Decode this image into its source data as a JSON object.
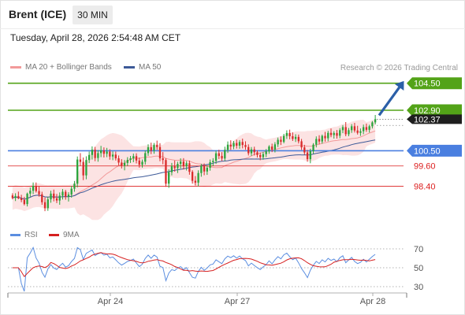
{
  "header": {
    "instrument": "Brent (ICE)",
    "interval": "30 MIN",
    "timestamp": "Tuesday, April 28, 2026 2:54:48 AM CET"
  },
  "legend": {
    "ma20_bb": "MA 20 + Bollinger Bands",
    "ma50": "MA 50",
    "credit": "Research © 2026 Trading Central",
    "rsi": "RSI",
    "rsi_ma": "9MA"
  },
  "colors": {
    "resistance": "#53a318",
    "support": "#4a7fe0",
    "minor_level": "#dc1e1e",
    "candle_up": "#2aa43c",
    "candle_down": "#d92b2b",
    "bollinger_band": "#fbdada",
    "ma20": "#f29a9a",
    "ma50": "#3d5a98",
    "rsi": "#5b8ee0",
    "rsi_ma": "#d62020",
    "arrow": "#2b5fa8",
    "last_price": "#1e1e1e"
  },
  "chart_data": [
    {
      "type": "candlestick",
      "title": "Brent (ICE)",
      "interval": "30 MIN",
      "y_ticks": [
        98.4,
        99.6,
        100.5,
        102.9,
        104.5
      ],
      "ylim": [
        96.6,
        105.0
      ],
      "x_ticks": [
        "Apr 24",
        "Apr 27",
        "Apr 28"
      ],
      "levels": [
        {
          "value": 104.5,
          "label": "104.50",
          "kind": "resistance",
          "style": "solid",
          "badge": true
        },
        {
          "value": 102.9,
          "label": "102.90",
          "kind": "resistance",
          "style": "solid",
          "badge": true
        },
        {
          "value": 100.5,
          "label": "100.50",
          "kind": "support",
          "style": "solid",
          "badge": true
        },
        {
          "value": 99.6,
          "label": "99.60",
          "kind": "minor",
          "style": "thin",
          "badge": false
        },
        {
          "value": 98.4,
          "label": "98.40",
          "kind": "minor",
          "style": "thin",
          "badge": false
        }
      ],
      "last_price": {
        "value": 102.37,
        "label": "102.37"
      },
      "projection_arrow": {
        "from": 102.6,
        "to": 104.5,
        "direction": "up"
      },
      "series": [
        {
          "name": "MA 20 + Bollinger Bands",
          "type": "line"
        },
        {
          "name": "MA 50",
          "type": "line"
        }
      ],
      "ohlc": [
        [
          97.85,
          97.98,
          97.62,
          97.7
        ],
        [
          97.7,
          97.98,
          97.52,
          97.82
        ],
        [
          97.82,
          98.08,
          97.63,
          97.68
        ],
        [
          97.68,
          97.89,
          97.45,
          97.58
        ],
        [
          97.58,
          97.77,
          97.26,
          97.34
        ],
        [
          97.34,
          98.02,
          97.2,
          97.96
        ],
        [
          97.96,
          98.32,
          97.78,
          98.13
        ],
        [
          98.13,
          98.62,
          97.93,
          98.42
        ],
        [
          98.42,
          98.62,
          98.02,
          98.11
        ],
        [
          98.11,
          98.37,
          97.78,
          97.92
        ],
        [
          97.92,
          98.07,
          97.3,
          97.45
        ],
        [
          97.45,
          97.73,
          96.92,
          97.1
        ],
        [
          97.1,
          97.77,
          96.94,
          97.62
        ],
        [
          97.62,
          98.13,
          97.42,
          97.96
        ],
        [
          97.96,
          98.2,
          97.5,
          97.68
        ],
        [
          97.68,
          97.94,
          97.4,
          97.55
        ],
        [
          97.55,
          98.03,
          97.3,
          97.84
        ],
        [
          97.84,
          98.23,
          97.61,
          98.07
        ],
        [
          98.07,
          98.18,
          97.6,
          97.78
        ],
        [
          97.78,
          98.04,
          97.49,
          97.9
        ],
        [
          97.9,
          98.42,
          97.72,
          98.25
        ],
        [
          98.25,
          98.71,
          98.07,
          98.55
        ],
        [
          98.55,
          100.16,
          98.33,
          99.98
        ],
        [
          99.98,
          100.36,
          99.6,
          99.84
        ],
        [
          99.84,
          100.1,
          98.76,
          99.04
        ],
        [
          99.04,
          100.17,
          98.81,
          99.95
        ],
        [
          99.95,
          100.45,
          99.77,
          100.25
        ],
        [
          100.25,
          100.76,
          99.98,
          100.56
        ],
        [
          100.56,
          100.73,
          99.88,
          100.07
        ],
        [
          100.07,
          100.54,
          99.85,
          100.36
        ],
        [
          100.36,
          100.79,
          100.12,
          100.52
        ],
        [
          100.52,
          100.7,
          100.1,
          100.32
        ],
        [
          100.32,
          100.67,
          100.12,
          100.45
        ],
        [
          100.45,
          100.59,
          99.97,
          100.16
        ],
        [
          100.16,
          100.46,
          99.94,
          100.27
        ],
        [
          100.27,
          100.45,
          99.92,
          100.05
        ],
        [
          100.05,
          100.22,
          99.64,
          99.8
        ],
        [
          99.8,
          100.0,
          99.45,
          99.62
        ],
        [
          99.62,
          99.95,
          99.34,
          99.78
        ],
        [
          99.78,
          100.12,
          99.6,
          99.96
        ],
        [
          99.96,
          100.19,
          99.78,
          100.05
        ],
        [
          100.05,
          100.33,
          99.82,
          100.18
        ],
        [
          100.18,
          100.35,
          99.75,
          99.92
        ],
        [
          99.92,
          100.1,
          99.5,
          99.67
        ],
        [
          99.67,
          99.98,
          99.5,
          99.85
        ],
        [
          99.85,
          100.52,
          99.68,
          100.36
        ],
        [
          100.36,
          100.88,
          100.2,
          100.71
        ],
        [
          100.71,
          100.98,
          100.3,
          100.5
        ],
        [
          100.5,
          100.96,
          100.32,
          100.84
        ],
        [
          100.84,
          101.1,
          100.55,
          100.72
        ],
        [
          100.72,
          100.95,
          99.88,
          100.05
        ],
        [
          100.05,
          100.42,
          99.7,
          99.95
        ],
        [
          99.95,
          100.05,
          98.36,
          98.55
        ],
        [
          98.55,
          99.4,
          98.3,
          99.23
        ],
        [
          99.23,
          99.78,
          99.04,
          99.58
        ],
        [
          99.58,
          99.92,
          99.26,
          99.47
        ],
        [
          99.47,
          99.85,
          99.18,
          99.72
        ],
        [
          99.72,
          100.05,
          99.45,
          99.86
        ],
        [
          99.86,
          100.06,
          99.39,
          99.58
        ],
        [
          99.58,
          99.89,
          99.33,
          99.76
        ],
        [
          99.76,
          99.92,
          99.08,
          99.25
        ],
        [
          99.25,
          99.35,
          98.55,
          98.72
        ],
        [
          98.72,
          99.0,
          98.44,
          98.61
        ],
        [
          98.61,
          99.34,
          98.39,
          99.18
        ],
        [
          99.18,
          99.72,
          98.96,
          99.59
        ],
        [
          99.59,
          99.75,
          99.05,
          99.27
        ],
        [
          99.27,
          99.64,
          99.07,
          99.49
        ],
        [
          99.49,
          99.98,
          99.32,
          99.82
        ],
        [
          99.82,
          100.06,
          99.6,
          99.9
        ],
        [
          99.9,
          100.51,
          99.72,
          100.35
        ],
        [
          100.35,
          100.56,
          100.01,
          100.19
        ],
        [
          100.19,
          100.42,
          99.9,
          100.04
        ],
        [
          100.04,
          100.74,
          99.9,
          100.55
        ],
        [
          100.55,
          101.05,
          100.37,
          100.86
        ],
        [
          100.86,
          101.12,
          100.55,
          100.75
        ],
        [
          100.75,
          101.08,
          100.59,
          100.96
        ],
        [
          100.96,
          101.16,
          100.63,
          100.8
        ],
        [
          100.8,
          101.13,
          100.62,
          101.02
        ],
        [
          101.02,
          101.22,
          100.64,
          100.84
        ],
        [
          100.84,
          101.06,
          100.56,
          100.72
        ],
        [
          100.72,
          100.88,
          100.22,
          100.35
        ],
        [
          100.35,
          100.72,
          100.2,
          100.58
        ],
        [
          100.58,
          100.74,
          100.22,
          100.41
        ],
        [
          100.41,
          100.52,
          100.1,
          100.25
        ],
        [
          100.25,
          100.39,
          99.94,
          100.12
        ],
        [
          100.12,
          100.43,
          99.97,
          100.3
        ],
        [
          100.3,
          100.6,
          100.12,
          100.46
        ],
        [
          100.46,
          100.83,
          100.32,
          100.75
        ],
        [
          100.75,
          100.92,
          100.42,
          100.57
        ],
        [
          100.57,
          101.01,
          100.4,
          100.88
        ],
        [
          100.88,
          101.28,
          100.72,
          101.15
        ],
        [
          101.15,
          101.35,
          100.84,
          101.03
        ],
        [
          101.03,
          101.5,
          100.94,
          101.38
        ],
        [
          101.38,
          101.71,
          101.2,
          101.55
        ],
        [
          101.55,
          101.75,
          101.18,
          101.36
        ],
        [
          101.36,
          101.59,
          101.08,
          101.2
        ],
        [
          101.2,
          101.48,
          101.02,
          101.32
        ],
        [
          101.32,
          101.46,
          100.93,
          101.06
        ],
        [
          101.06,
          101.2,
          100.55,
          100.7
        ],
        [
          100.7,
          100.85,
          100.26,
          100.4
        ],
        [
          100.4,
          100.55,
          99.85,
          100.0
        ],
        [
          100.0,
          100.62,
          99.76,
          100.48
        ],
        [
          100.48,
          100.95,
          100.32,
          100.86
        ],
        [
          100.86,
          101.35,
          100.7,
          101.2
        ],
        [
          101.2,
          101.42,
          100.88,
          101.05
        ],
        [
          101.05,
          101.46,
          100.92,
          101.38
        ],
        [
          101.38,
          101.62,
          101.04,
          101.24
        ],
        [
          101.24,
          101.68,
          101.06,
          101.56
        ],
        [
          101.56,
          101.82,
          101.3,
          101.43
        ],
        [
          101.43,
          101.66,
          101.22,
          101.55
        ],
        [
          101.55,
          101.73,
          101.22,
          101.39
        ],
        [
          101.39,
          101.84,
          101.24,
          101.72
        ],
        [
          101.72,
          102.02,
          101.54,
          101.9
        ],
        [
          101.9,
          102.2,
          101.36,
          101.48
        ],
        [
          101.48,
          101.85,
          101.36,
          101.72
        ],
        [
          101.72,
          102.08,
          101.56,
          101.95
        ],
        [
          101.95,
          102.15,
          101.58,
          101.7
        ],
        [
          101.7,
          101.98,
          101.46,
          101.56
        ],
        [
          101.56,
          101.82,
          101.38,
          101.66
        ],
        [
          101.66,
          102.05,
          101.48,
          101.9
        ],
        [
          101.9,
          102.11,
          101.62,
          101.74
        ],
        [
          101.74,
          102.04,
          101.58,
          101.95
        ],
        [
          101.95,
          102.26,
          101.82,
          102.18
        ],
        [
          102.18,
          102.62,
          102.06,
          102.37
        ]
      ]
    },
    {
      "type": "line",
      "title": "RSI",
      "y_ticks": [
        30,
        50,
        70
      ],
      "ylim": [
        25,
        75
      ],
      "series": [
        {
          "name": "RSI"
        },
        {
          "name": "9MA"
        }
      ]
    }
  ]
}
